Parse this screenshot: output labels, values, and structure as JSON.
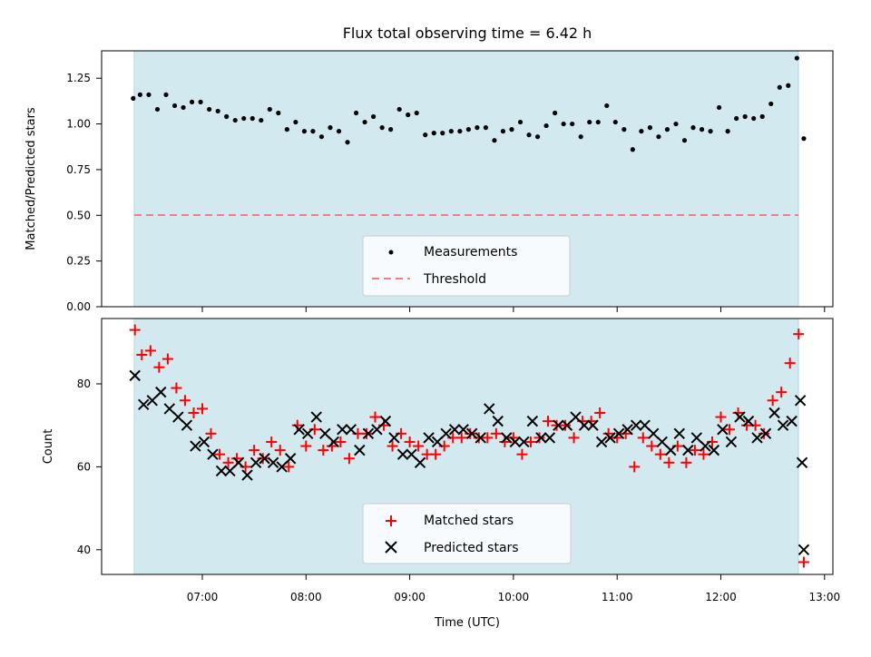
{
  "chart_data": [
    {
      "type": "scatter",
      "title": "Flux total observing time = 6.42 h",
      "xlabel": "",
      "ylabel": "Matched/Predicted stars",
      "ylim": [
        0,
        1.4
      ],
      "yticks": [
        "0.00",
        "0.25",
        "0.50",
        "0.75",
        "1.00",
        "1.25"
      ],
      "shaded_span": {
        "from": "06:20",
        "to": "12:45",
        "color": "#add8e6"
      },
      "legend": {
        "placement": "lower-center",
        "entries": [
          "Measurements",
          "Threshold"
        ]
      },
      "threshold": {
        "name": "Threshold",
        "value": 0.5,
        "color": "#f08080",
        "style": "dashed"
      },
      "series": [
        {
          "name": "Measurements",
          "color": "#000000",
          "marker": "dot",
          "x_minutes": [
            380,
            384,
            389,
            394,
            399,
            404,
            409,
            414,
            419,
            424,
            429,
            434,
            439,
            444,
            449,
            454,
            459,
            464,
            469,
            474,
            479,
            484,
            489,
            494,
            499,
            504,
            509,
            514,
            519,
            524,
            529,
            534,
            539,
            544,
            549,
            554,
            559,
            564,
            569,
            574,
            579,
            584,
            589,
            594,
            599,
            604,
            609,
            614,
            619,
            624,
            629,
            634,
            639,
            644,
            649,
            654,
            659,
            664,
            669,
            674,
            679,
            684,
            689,
            694,
            699,
            704,
            709,
            714,
            719,
            724,
            729,
            734,
            739,
            744,
            749,
            754,
            759,
            764
          ],
          "values": [
            1.14,
            1.16,
            1.16,
            1.08,
            1.16,
            1.1,
            1.09,
            1.12,
            1.12,
            1.08,
            1.07,
            1.04,
            1.02,
            1.03,
            1.03,
            1.02,
            1.08,
            1.06,
            0.97,
            1.01,
            0.96,
            0.96,
            0.93,
            0.98,
            0.96,
            0.9,
            1.06,
            1.01,
            1.04,
            0.98,
            0.97,
            1.08,
            1.05,
            1.06,
            0.94,
            0.95,
            0.95,
            0.96,
            0.96,
            0.97,
            0.98,
            0.98,
            0.91,
            0.96,
            0.97,
            1.01,
            0.94,
            0.93,
            0.99,
            1.06,
            1.0,
            1.0,
            0.93,
            1.01,
            1.01,
            1.1,
            1.01,
            0.97,
            0.86,
            0.96,
            0.98,
            0.93,
            0.97,
            1.0,
            0.91,
            0.98,
            0.97,
            0.96,
            1.09,
            0.96,
            1.03,
            1.04,
            1.03,
            1.04,
            1.11,
            1.2,
            1.21,
            1.36
          ]
        }
      ]
    },
    {
      "type": "scatter",
      "title": "",
      "xlabel": "Time (UTC)",
      "ylabel": "Count",
      "ylim": [
        34,
        94
      ],
      "yticks": [
        "40",
        "60",
        "80"
      ],
      "xticks": [
        "07:00",
        "08:00",
        "09:00",
        "10:00",
        "11:00",
        "12:00",
        "13:00"
      ],
      "shaded_span": {
        "from": "06:20",
        "to": "12:45",
        "color": "#add8e6"
      },
      "legend": {
        "placement": "lower-center",
        "entries": [
          "Matched stars",
          "Predicted stars"
        ]
      },
      "series": [
        {
          "name": "Matched stars",
          "color": "#ff0000",
          "marker": "plus",
          "x_minutes": [
            381,
            385,
            390,
            395,
            400,
            405,
            410,
            415,
            420,
            425,
            430,
            435,
            440,
            445,
            450,
            455,
            460,
            465,
            470,
            475,
            480,
            485,
            490,
            495,
            500,
            505,
            510,
            515,
            520,
            525,
            530,
            535,
            540,
            545,
            550,
            555,
            560,
            565,
            570,
            575,
            580,
            585,
            590,
            595,
            600,
            605,
            610,
            615,
            620,
            625,
            630,
            635,
            640,
            645,
            650,
            655,
            660,
            665,
            670,
            675,
            680,
            685,
            690,
            695,
            700,
            705,
            710,
            715,
            720,
            725,
            730,
            735,
            740,
            745,
            750,
            755,
            760,
            765
          ],
          "values": [
            93,
            87,
            88,
            84,
            86,
            79,
            76,
            73,
            74,
            68,
            63,
            61,
            62,
            60,
            64,
            62,
            66,
            64,
            60,
            70,
            65,
            69,
            64,
            65,
            66,
            62,
            68,
            68,
            72,
            70,
            65,
            68,
            66,
            65,
            63,
            63,
            65,
            67,
            67,
            68,
            67,
            67,
            68,
            66,
            67,
            63,
            66,
            67,
            71,
            70,
            70,
            67,
            71,
            71,
            73,
            68,
            67,
            68,
            60,
            67,
            65,
            63,
            61,
            65,
            61,
            64,
            63,
            66,
            72,
            69,
            73,
            70,
            70,
            68,
            76,
            78,
            85,
            92
          ]
        },
        {
          "name": "Predicted stars",
          "color": "#000000",
          "marker": "x",
          "x_minutes": [
            381,
            386,
            391,
            396,
            401,
            406,
            411,
            416,
            421,
            426,
            431,
            436,
            441,
            446,
            451,
            456,
            461,
            466,
            471,
            476,
            481,
            486,
            491,
            496,
            501,
            506,
            511,
            516,
            521,
            526,
            531,
            536,
            541,
            546,
            551,
            556,
            561,
            566,
            571,
            576,
            581,
            586,
            591,
            596,
            601,
            606,
            611,
            616,
            621,
            626,
            631,
            636,
            641,
            646,
            651,
            656,
            661,
            666,
            671,
            676,
            681,
            686,
            691,
            696,
            701,
            706,
            711,
            716,
            721,
            726,
            731,
            736,
            741,
            746,
            751,
            756,
            761,
            766
          ],
          "values": [
            82,
            75,
            76,
            78,
            74,
            72,
            70,
            65,
            66,
            63,
            59,
            59,
            61,
            58,
            61,
            62,
            61,
            60,
            62,
            69,
            68,
            72,
            68,
            66,
            69,
            69,
            64,
            68,
            69,
            71,
            67,
            63,
            63,
            61,
            67,
            66,
            68,
            69,
            69,
            68,
            67,
            74,
            71,
            67,
            66,
            66,
            71,
            67,
            67,
            70,
            70,
            72,
            70,
            70,
            66,
            67,
            68,
            69,
            70,
            70,
            68,
            66,
            64,
            68,
            64,
            67,
            65,
            64,
            69,
            66,
            72,
            71,
            67,
            68,
            73,
            70,
            71,
            76
          ]
        }
      ],
      "outlier_points": {
        "time": "12:48",
        "matched": 37,
        "predicted": 40,
        "predicted_extra": 61
      }
    }
  ]
}
